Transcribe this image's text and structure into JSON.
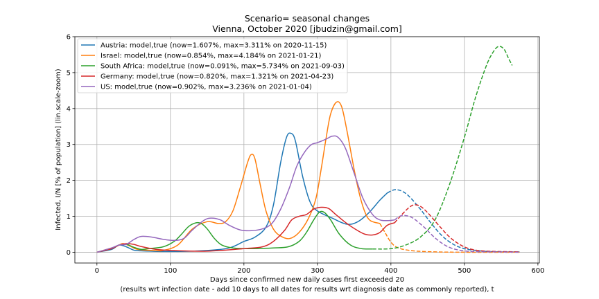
{
  "chart_data": {
    "type": "line",
    "title": "Scenario= seasonal changes",
    "subtitle": "Vienna, October 2020 [jbudzin@gmail.com]",
    "xlabel": "Days since confirmed new daily cases first exceeded 20",
    "xlabel2": "(results wrt infection date - add 10 days to all dates for results wrt diagnosis date as commonly reported), t",
    "ylabel": "Infected, I/N [% of population] (lin.scale-zoom)",
    "xlim": [
      -30,
      602
    ],
    "ylim": [
      -0.3,
      6.0
    ],
    "xticks": [
      0,
      100,
      200,
      300,
      400,
      500,
      600
    ],
    "yticks": [
      0,
      1,
      2,
      3,
      4,
      5,
      6
    ],
    "grid": true,
    "legend_position": "top-left",
    "series": [
      {
        "name": "Austria: model,true (now=1.607%, max=3.311% on 2020-11-15)",
        "color": "#1f77b4",
        "solid": [
          [
            0,
            0
          ],
          [
            20,
            0.08
          ],
          [
            30,
            0.2
          ],
          [
            40,
            0.15
          ],
          [
            50,
            0.06
          ],
          [
            60,
            0.04
          ],
          [
            100,
            0.02
          ],
          [
            150,
            0.05
          ],
          [
            180,
            0.12
          ],
          [
            200,
            0.3
          ],
          [
            215,
            0.42
          ],
          [
            230,
            0.7
          ],
          [
            240,
            1.3
          ],
          [
            250,
            2.5
          ],
          [
            258,
            3.2
          ],
          [
            264,
            3.31
          ],
          [
            270,
            3.1
          ],
          [
            280,
            2.1
          ],
          [
            290,
            1.4
          ],
          [
            300,
            1.15
          ],
          [
            320,
            0.95
          ],
          [
            340,
            0.78
          ],
          [
            355,
            0.85
          ],
          [
            370,
            1.1
          ],
          [
            385,
            1.45
          ],
          [
            395,
            1.65
          ]
        ],
        "dashed": [
          [
            395,
            1.65
          ],
          [
            405,
            1.74
          ],
          [
            415,
            1.7
          ],
          [
            425,
            1.55
          ],
          [
            440,
            1.2
          ],
          [
            455,
            0.8
          ],
          [
            470,
            0.45
          ],
          [
            485,
            0.22
          ],
          [
            500,
            0.1
          ],
          [
            520,
            0.04
          ],
          [
            545,
            0.01
          ],
          [
            575,
            0.01
          ]
        ]
      },
      {
        "name": "Israel: model,true (now=0.854%, max=4.184% on 2021-01-21)",
        "color": "#ff7f0e",
        "solid": [
          [
            0,
            0
          ],
          [
            25,
            0.15
          ],
          [
            35,
            0.24
          ],
          [
            45,
            0.17
          ],
          [
            55,
            0.08
          ],
          [
            75,
            0.05
          ],
          [
            90,
            0.05
          ],
          [
            110,
            0.2
          ],
          [
            130,
            0.65
          ],
          [
            150,
            0.85
          ],
          [
            165,
            0.8
          ],
          [
            175,
            0.85
          ],
          [
            185,
            1.15
          ],
          [
            195,
            1.8
          ],
          [
            205,
            2.5
          ],
          [
            210,
            2.72
          ],
          [
            215,
            2.6
          ],
          [
            222,
            1.9
          ],
          [
            230,
            1.15
          ],
          [
            240,
            0.65
          ],
          [
            250,
            0.45
          ],
          [
            262,
            0.38
          ],
          [
            275,
            0.55
          ],
          [
            288,
            0.95
          ],
          [
            298,
            1.5
          ],
          [
            305,
            2.3
          ],
          [
            312,
            3.2
          ],
          [
            318,
            3.85
          ],
          [
            326,
            4.18
          ],
          [
            333,
            4.05
          ],
          [
            340,
            3.4
          ],
          [
            350,
            2.3
          ],
          [
            358,
            1.55
          ],
          [
            365,
            1.1
          ],
          [
            372,
            0.88
          ],
          [
            385,
            0.8
          ]
        ],
        "dashed": [
          [
            385,
            0.8
          ],
          [
            392,
            0.55
          ],
          [
            400,
            0.28
          ],
          [
            410,
            0.12
          ],
          [
            430,
            0.04
          ],
          [
            460,
            0.01
          ],
          [
            500,
            0.0
          ],
          [
            575,
            0.0
          ]
        ]
      },
      {
        "name": "South Africa: model,true (now=0.091%, max=5.734% on 2021-09-03)",
        "color": "#2ca02c",
        "solid": [
          [
            0,
            0
          ],
          [
            20,
            0.1
          ],
          [
            30,
            0.2
          ],
          [
            40,
            0.22
          ],
          [
            50,
            0.14
          ],
          [
            60,
            0.08
          ],
          [
            70,
            0.1
          ],
          [
            90,
            0.15
          ],
          [
            105,
            0.3
          ],
          [
            115,
            0.5
          ],
          [
            125,
            0.72
          ],
          [
            135,
            0.82
          ],
          [
            142,
            0.8
          ],
          [
            150,
            0.65
          ],
          [
            160,
            0.38
          ],
          [
            170,
            0.2
          ],
          [
            185,
            0.12
          ],
          [
            210,
            0.1
          ],
          [
            240,
            0.12
          ],
          [
            260,
            0.15
          ],
          [
            275,
            0.3
          ],
          [
            285,
            0.55
          ],
          [
            295,
            0.9
          ],
          [
            303,
            1.12
          ],
          [
            310,
            1.1
          ],
          [
            318,
            0.9
          ],
          [
            330,
            0.5
          ],
          [
            345,
            0.2
          ],
          [
            360,
            0.1
          ],
          [
            375,
            0.09
          ]
        ],
        "dashed": [
          [
            375,
            0.09
          ],
          [
            400,
            0.1
          ],
          [
            420,
            0.2
          ],
          [
            440,
            0.42
          ],
          [
            460,
            0.9
          ],
          [
            480,
            1.9
          ],
          [
            500,
            3.2
          ],
          [
            515,
            4.3
          ],
          [
            530,
            5.2
          ],
          [
            540,
            5.6
          ],
          [
            547,
            5.73
          ],
          [
            554,
            5.65
          ],
          [
            560,
            5.4
          ],
          [
            565,
            5.2
          ]
        ]
      },
      {
        "name": "Germany: model,true (now=0.820%, max=1.321% on 2021-04-23)",
        "color": "#d62728",
        "solid": [
          [
            0,
            0
          ],
          [
            20,
            0.1
          ],
          [
            30,
            0.2
          ],
          [
            40,
            0.24
          ],
          [
            50,
            0.22
          ],
          [
            60,
            0.16
          ],
          [
            80,
            0.08
          ],
          [
            100,
            0.05
          ],
          [
            150,
            0.03
          ],
          [
            200,
            0.1
          ],
          [
            225,
            0.15
          ],
          [
            240,
            0.3
          ],
          [
            255,
            0.6
          ],
          [
            265,
            0.9
          ],
          [
            275,
            1.0
          ],
          [
            285,
            1.05
          ],
          [
            295,
            1.2
          ],
          [
            305,
            1.25
          ],
          [
            315,
            1.22
          ],
          [
            325,
            1.05
          ],
          [
            340,
            0.8
          ],
          [
            355,
            0.6
          ],
          [
            365,
            0.5
          ],
          [
            375,
            0.48
          ],
          [
            385,
            0.55
          ],
          [
            395,
            0.75
          ],
          [
            405,
            0.82
          ]
        ],
        "dashed": [
          [
            405,
            0.82
          ],
          [
            415,
            1.05
          ],
          [
            425,
            1.25
          ],
          [
            432,
            1.32
          ],
          [
            440,
            1.28
          ],
          [
            450,
            1.1
          ],
          [
            465,
            0.75
          ],
          [
            480,
            0.42
          ],
          [
            495,
            0.2
          ],
          [
            510,
            0.08
          ],
          [
            530,
            0.03
          ],
          [
            575,
            0.01
          ]
        ]
      },
      {
        "name": "US: model,true (now=0.902%, max=3.236% on 2021-01-04)",
        "color": "#9467bd",
        "solid": [
          [
            0,
            0
          ],
          [
            20,
            0.12
          ],
          [
            30,
            0.2
          ],
          [
            40,
            0.22
          ],
          [
            50,
            0.35
          ],
          [
            60,
            0.44
          ],
          [
            75,
            0.42
          ],
          [
            90,
            0.36
          ],
          [
            105,
            0.33
          ],
          [
            118,
            0.38
          ],
          [
            130,
            0.62
          ],
          [
            145,
            0.88
          ],
          [
            155,
            0.95
          ],
          [
            168,
            0.9
          ],
          [
            180,
            0.75
          ],
          [
            195,
            0.62
          ],
          [
            210,
            0.6
          ],
          [
            225,
            0.65
          ],
          [
            238,
            0.8
          ],
          [
            250,
            1.2
          ],
          [
            262,
            1.8
          ],
          [
            272,
            2.4
          ],
          [
            283,
            2.8
          ],
          [
            292,
            3.0
          ],
          [
            300,
            3.05
          ],
          [
            312,
            3.15
          ],
          [
            320,
            3.23
          ],
          [
            328,
            3.2
          ],
          [
            338,
            2.9
          ],
          [
            350,
            2.2
          ],
          [
            362,
            1.5
          ],
          [
            375,
            1.05
          ],
          [
            385,
            0.9
          ],
          [
            395,
            0.88
          ],
          [
            405,
            0.9
          ]
        ],
        "dashed": [
          [
            405,
            0.9
          ],
          [
            412,
            1.0
          ],
          [
            420,
            1.02
          ],
          [
            430,
            0.95
          ],
          [
            445,
            0.7
          ],
          [
            460,
            0.4
          ],
          [
            475,
            0.18
          ],
          [
            490,
            0.07
          ],
          [
            510,
            0.02
          ],
          [
            540,
            0.01
          ],
          [
            575,
            0.0
          ]
        ]
      }
    ]
  }
}
